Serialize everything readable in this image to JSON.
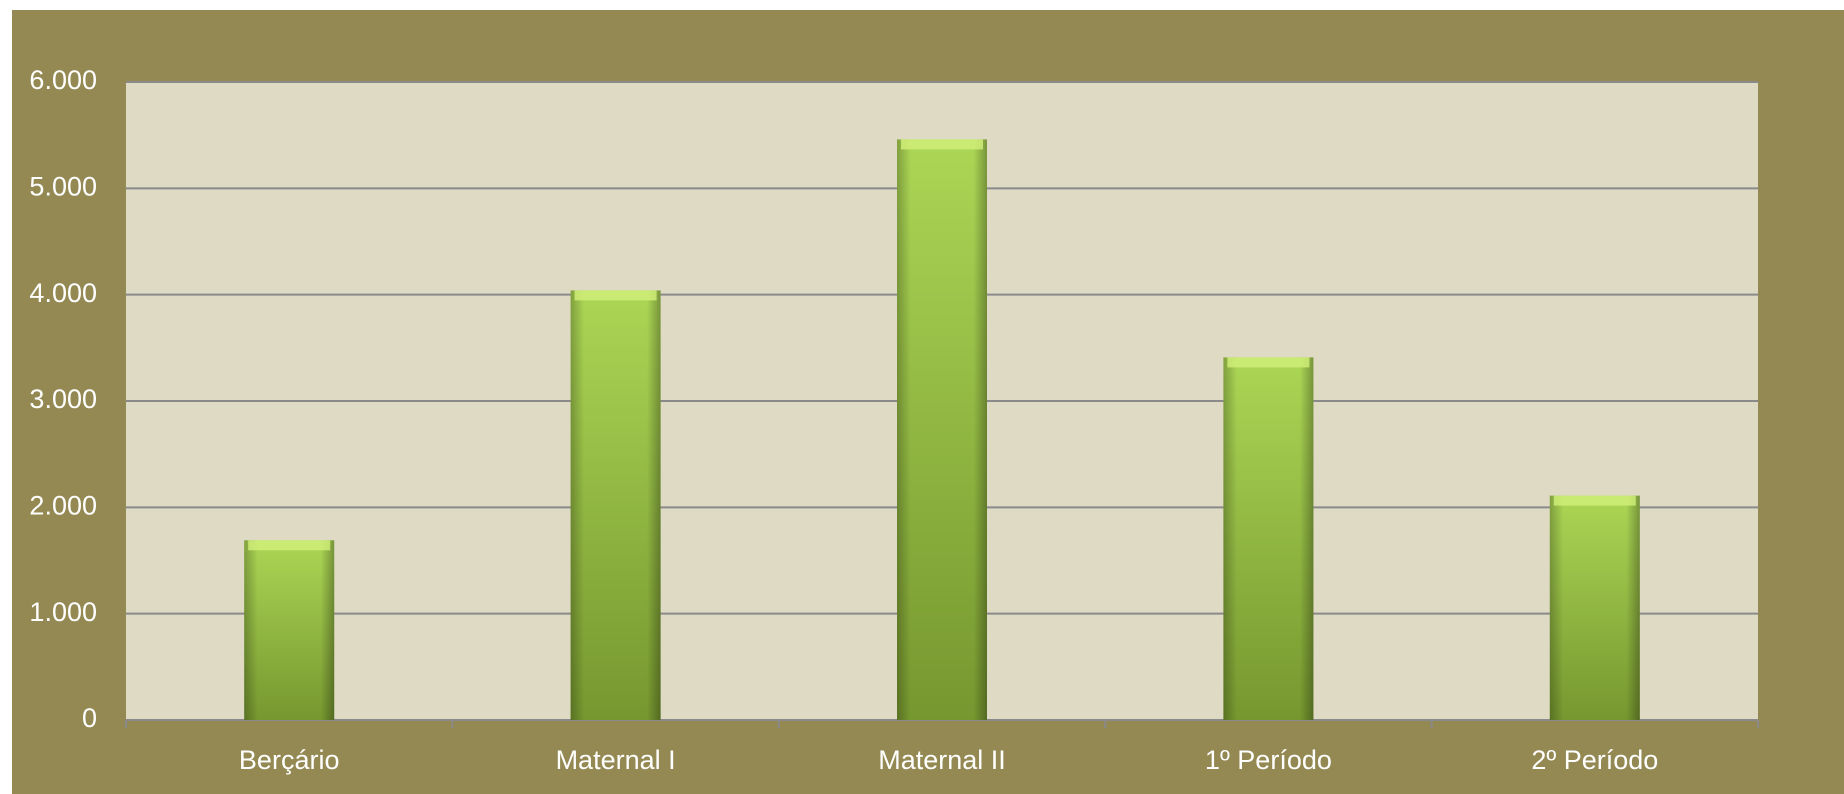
{
  "chart_data": {
    "type": "bar",
    "categories": [
      "Berçário",
      "Maternal I",
      "Maternal II",
      "1º Período",
      "2º Período"
    ],
    "values": [
      1690,
      4040,
      5460,
      3410,
      2110
    ],
    "color": "#94c044",
    "ylim": [
      0,
      6000
    ],
    "yticks": [
      0,
      {
        "value": 1000,
        "label": "1.000"
      },
      {
        "value": 2000,
        "label": "2.000"
      },
      {
        "value": 3000,
        "label": "3.000"
      },
      {
        "value": 4000,
        "label": "4.000"
      },
      {
        "value": 5000,
        "label": "5.000"
      },
      {
        "value": 6000,
        "label": "6.000"
      }
    ],
    "grid": true
  }
}
